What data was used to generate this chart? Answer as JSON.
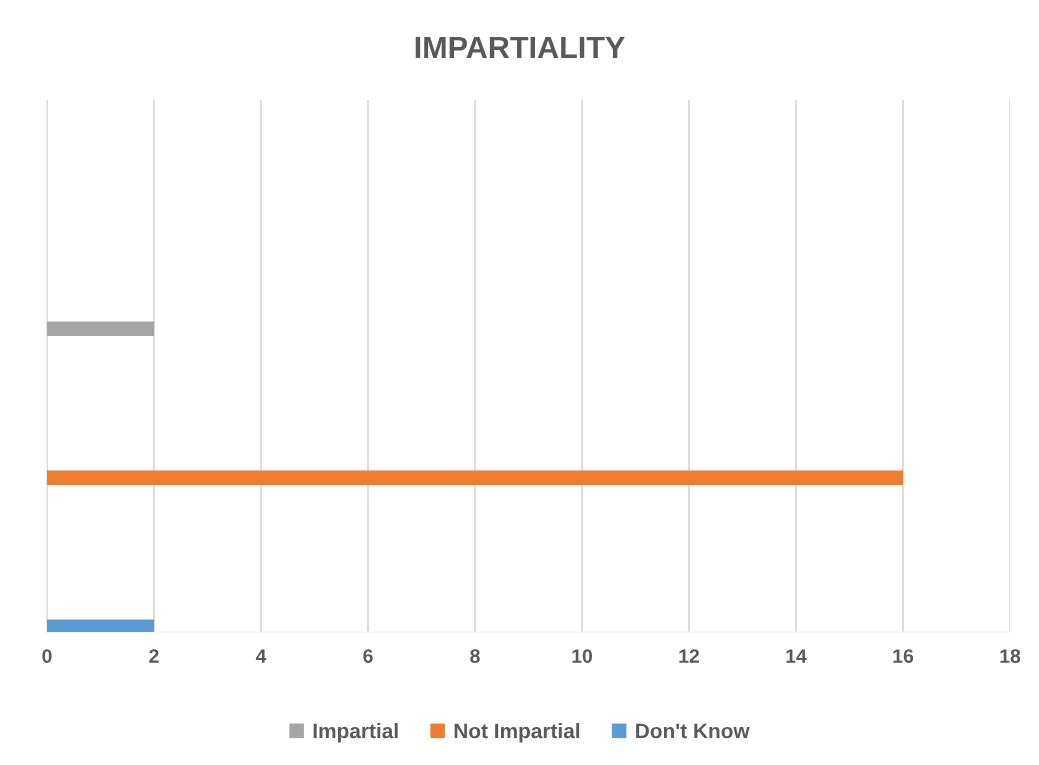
{
  "chart_data": {
    "type": "bar",
    "orientation": "horizontal",
    "title": "IMPARTIALITY",
    "categories": [
      null
    ],
    "series": [
      {
        "name": "Impartial",
        "color": "#a5a5a5",
        "values": [
          2
        ]
      },
      {
        "name": "Not Impartial",
        "color": "#ed7d31",
        "values": [
          16
        ]
      },
      {
        "name": "Don't Know",
        "color": "#5b9bd5",
        "values": [
          2
        ]
      }
    ],
    "xlim": [
      0,
      18
    ],
    "xticks": [
      0,
      2,
      4,
      6,
      8,
      10,
      12,
      14,
      16,
      18
    ],
    "grid": "x",
    "legend": "bottom"
  }
}
